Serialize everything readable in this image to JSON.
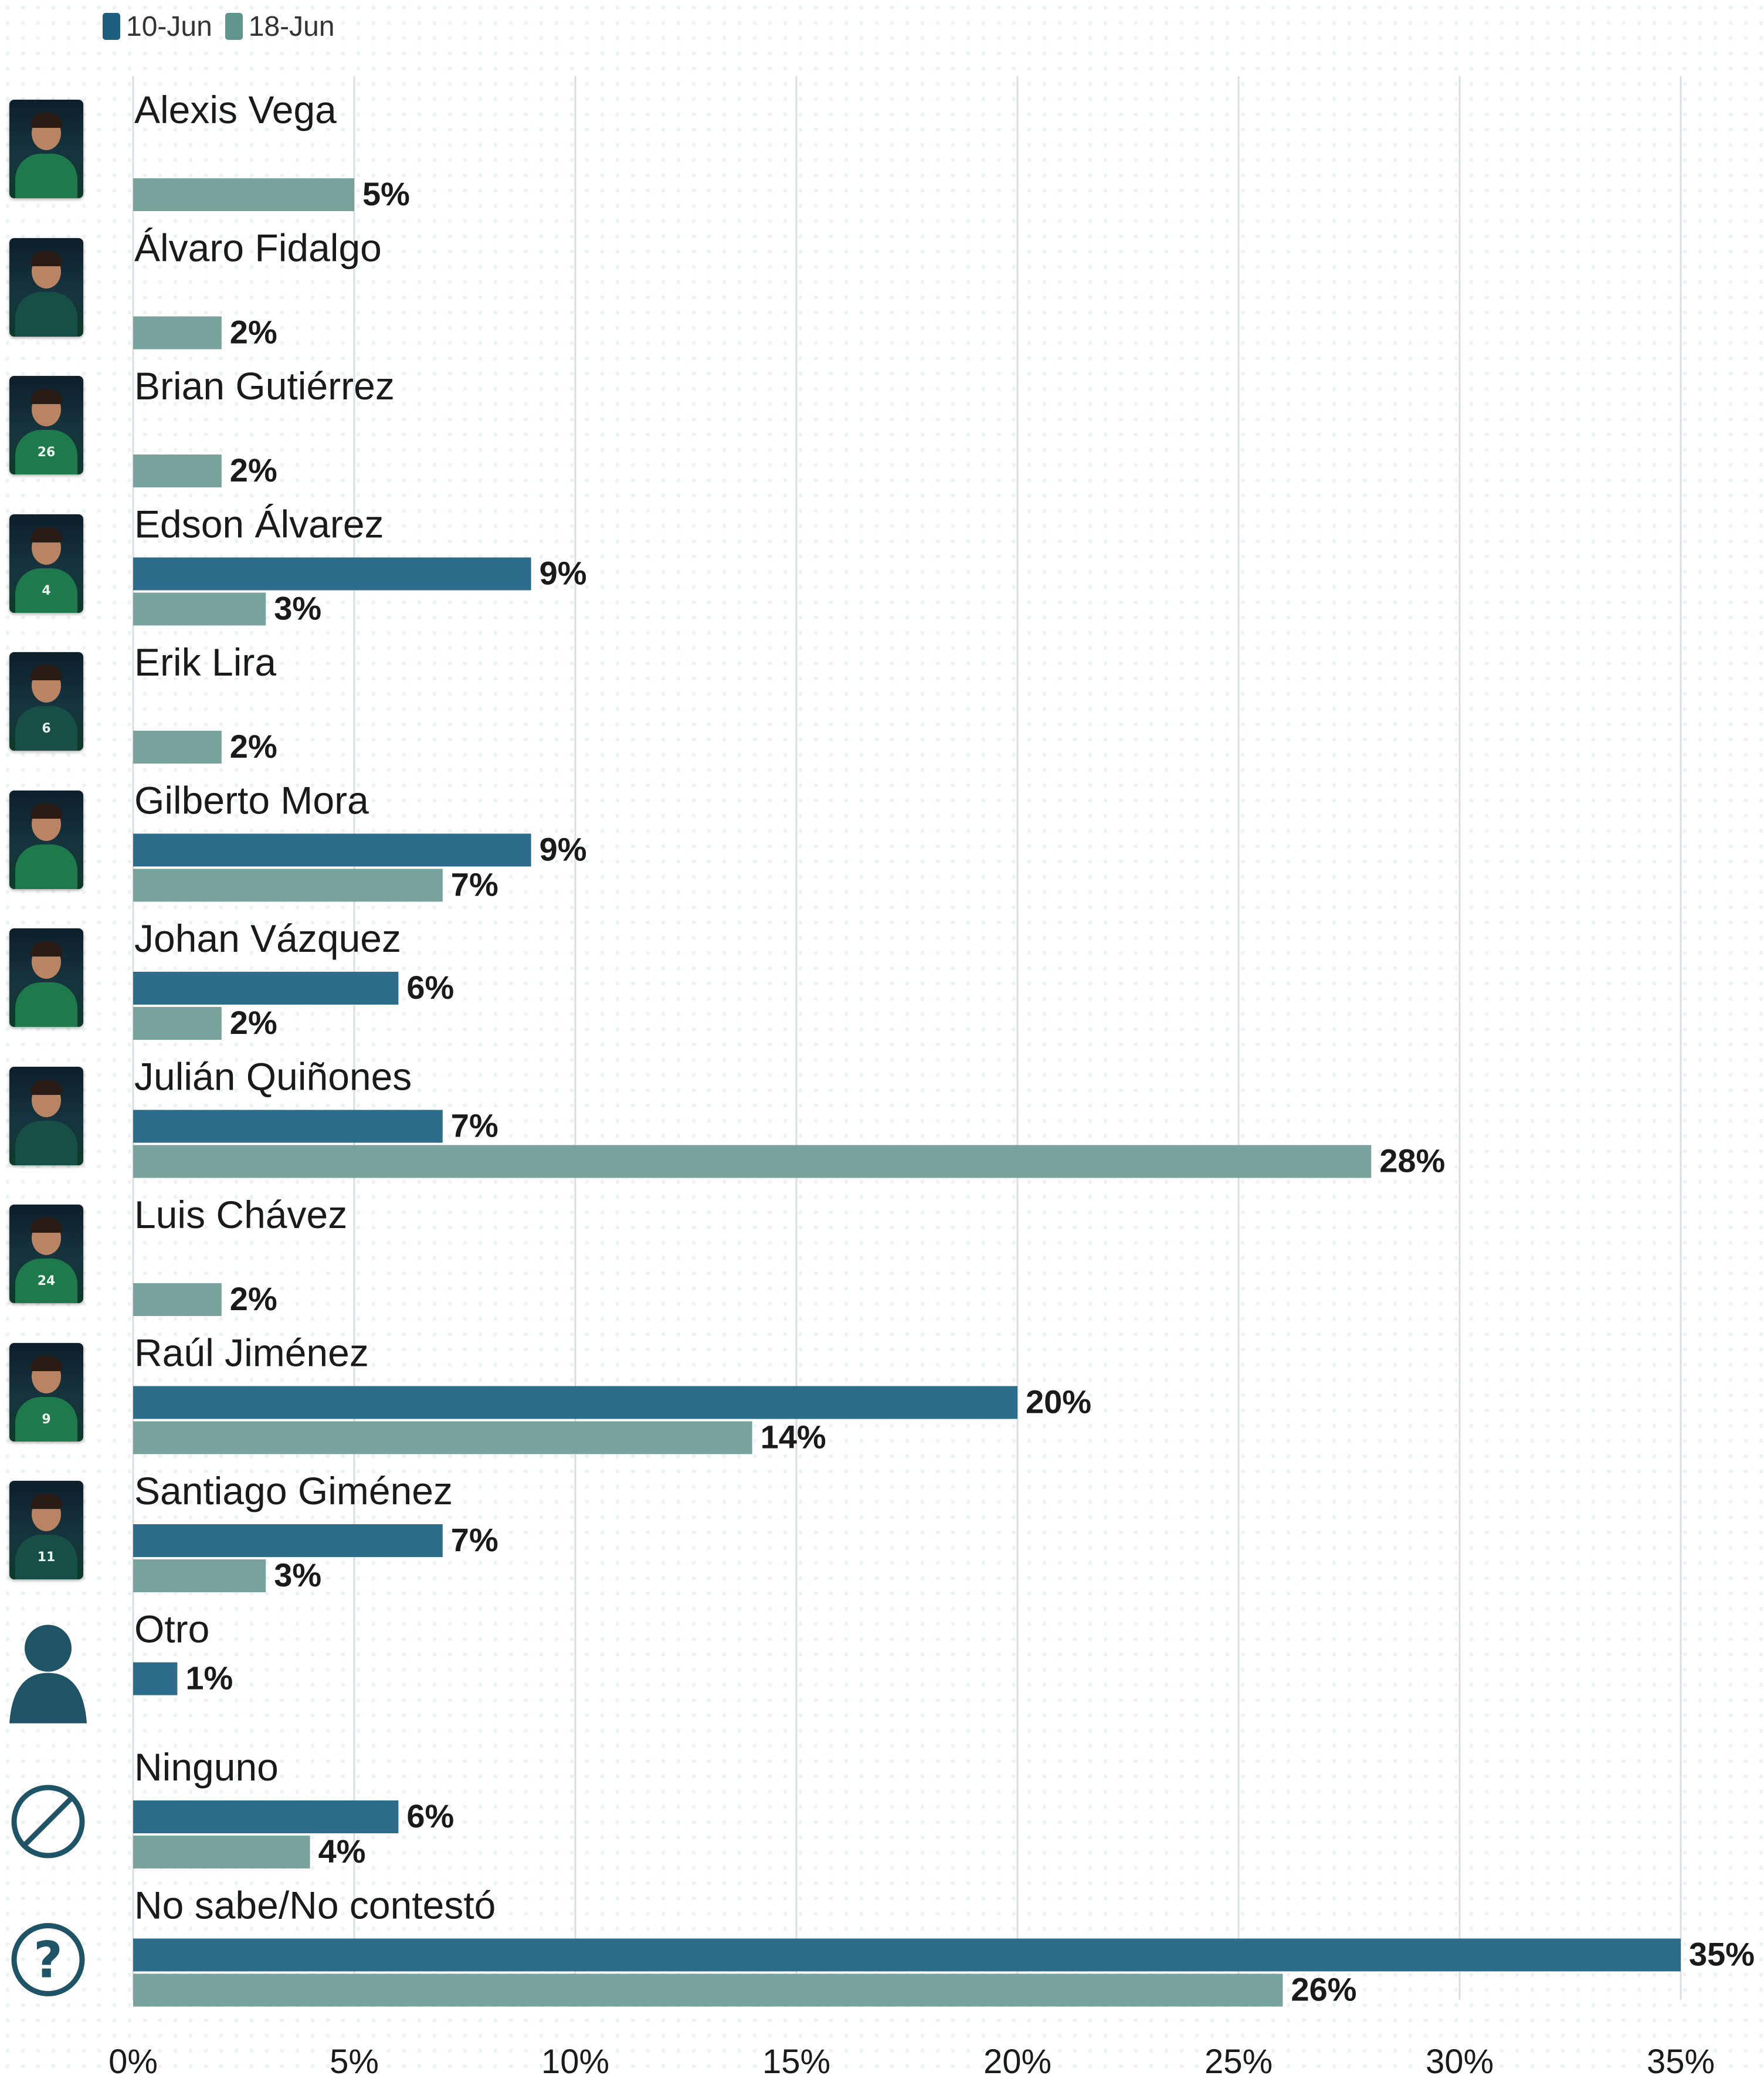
{
  "legend": [
    {
      "label": "10-Jun",
      "color": "#2e6c8b"
    },
    {
      "label": "18-Jun",
      "color": "#77a39c"
    }
  ],
  "colors": {
    "series_a": "#2e6c8b",
    "series_b": "#77a39c",
    "grid": "#d9dde0",
    "text": "#1a1a1a"
  },
  "chart_data": {
    "type": "bar",
    "orientation": "horizontal",
    "title": "",
    "xlabel": "",
    "ylabel": "",
    "xlim": [
      0,
      35
    ],
    "x_ticks": [
      "0%",
      "5%",
      "10%",
      "15%",
      "20%",
      "25%",
      "30%",
      "35%"
    ],
    "grid": true,
    "legend_position": "top-left",
    "categories": [
      "Alexis Vega",
      "Álvaro Fidalgo",
      "Brian Gutiérrez",
      "Edson Álvarez",
      "Erik Lira",
      "Gilberto Mora",
      "Johan Vázquez",
      "Julián Quiñones",
      "Luis Chávez",
      "Raúl Jiménez",
      "Santiago Giménez",
      "Otro",
      "Ninguno",
      "No sabe/No contestó"
    ],
    "category_icons": [
      "player-photo",
      "player-photo",
      "player-photo",
      "player-photo",
      "player-photo",
      "player-photo",
      "player-photo",
      "player-photo",
      "player-photo",
      "player-photo",
      "player-photo",
      "person-icon",
      "none-icon",
      "question-icon"
    ],
    "series": [
      {
        "name": "10-Jun",
        "values": [
          null,
          null,
          null,
          9,
          null,
          9,
          6,
          7,
          null,
          20,
          7,
          1,
          6,
          35
        ]
      },
      {
        "name": "18-Jun",
        "values": [
          5,
          2,
          2,
          3,
          2,
          7,
          2,
          28,
          2,
          14,
          3,
          null,
          4,
          26
        ]
      }
    ]
  }
}
